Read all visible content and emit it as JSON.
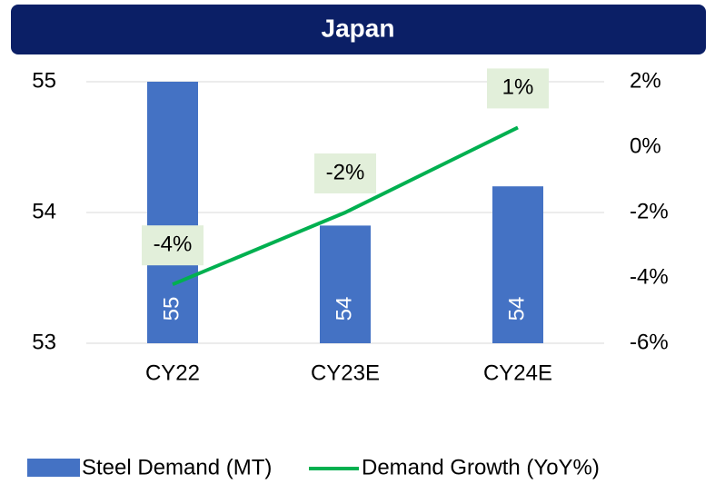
{
  "chart_data": {
    "type": "bar_line",
    "title": "Japan",
    "categories": [
      "CY22",
      "CY23E",
      "CY24E"
    ],
    "series": [
      {
        "name": "Steel Demand (MT)",
        "color": "#4472c4",
        "type": "bar",
        "values": [
          55.0,
          53.9,
          54.2
        ],
        "value_labels": [
          "55",
          "54",
          "54"
        ]
      },
      {
        "name": "Demand Growth (YoY%)",
        "color": "#00b050",
        "type": "line",
        "axis": "y2",
        "values": [
          -4.2,
          -2.0,
          0.6
        ],
        "value_labels": [
          "-4%",
          "-2%",
          "1%"
        ]
      }
    ],
    "ylim": [
      53,
      55
    ],
    "yticks": [
      53,
      54,
      55
    ],
    "y2lim": [
      -6,
      2
    ],
    "y2ticks": [
      {
        "value": -6,
        "label": "-6%"
      },
      {
        "value": -4,
        "label": "-4%"
      },
      {
        "value": -2,
        "label": "-2%"
      },
      {
        "value": 0,
        "label": "0%"
      },
      {
        "value": 2,
        "label": "2%"
      }
    ],
    "grid": true,
    "legend": "bottom"
  }
}
